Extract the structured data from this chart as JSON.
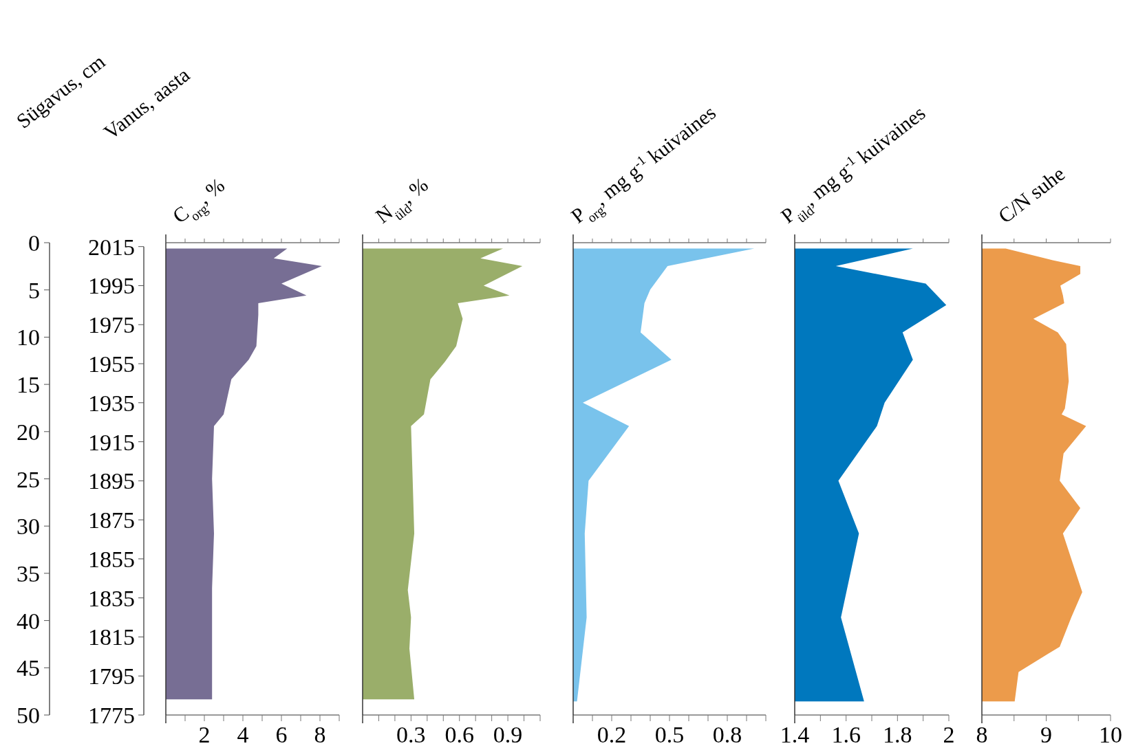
{
  "chart_data": [
    {
      "type": "area",
      "orientation": "horizontal",
      "title": "C$_{org}$, %",
      "ylabel": "Vanus, aasta",
      "y2label": "Sügavus, cm",
      "color": "#776e94",
      "x": [
        2014,
        2009,
        2005,
        1996,
        1990,
        1986,
        1980,
        1964,
        1957,
        1947,
        1929,
        1923,
        1896,
        1868,
        1840,
        1825,
        1783
      ],
      "values": [
        6.3,
        5.6,
        8.1,
        6.0,
        7.3,
        4.8,
        4.8,
        4.7,
        4.3,
        3.4,
        3.0,
        2.5,
        2.4,
        2.5,
        2.4,
        2.4,
        2.4
      ],
      "xlim": [
        0,
        9
      ],
      "xticks": [
        {
          "value": 0,
          "label": null
        },
        {
          "value": 1,
          "label": null
        },
        2,
        {
          "value": 3,
          "label": null
        },
        4,
        {
          "value": 5,
          "label": null
        },
        6,
        {
          "value": 7,
          "label": null
        },
        8,
        {
          "value": 9,
          "label": null
        }
      ],
      "ylim": [
        1775,
        2017
      ],
      "yticks": [
        1775,
        1795,
        1815,
        1835,
        1855,
        1875,
        1895,
        1915,
        1935,
        1955,
        1975,
        1995,
        2015
      ],
      "y2lim": [
        50,
        0
      ],
      "y2ticks": [
        0,
        5,
        10,
        15,
        20,
        25,
        30,
        35,
        40,
        45,
        50
      ]
    },
    {
      "type": "area",
      "orientation": "horizontal",
      "title": "N$_{üld}$, %",
      "color": "#9aae6a",
      "tick_labels": "x",
      "x": [
        2014,
        2009,
        2005,
        1995,
        1990,
        1986,
        1978,
        1964,
        1956,
        1947,
        1929,
        1923,
        1896,
        1868,
        1839,
        1825,
        1809,
        1783
      ],
      "values": [
        0.87,
        0.73,
        0.99,
        0.75,
        0.91,
        0.59,
        0.62,
        0.58,
        0.51,
        0.42,
        0.38,
        0.3,
        0.31,
        0.32,
        0.28,
        0.3,
        0.29,
        0.32
      ],
      "xlim": [
        0,
        1.1
      ],
      "xticks": [
        {
          "value": 0,
          "label": null
        },
        {
          "value": 0.1,
          "label": null
        },
        {
          "value": 0.2,
          "label": null
        },
        0.3,
        {
          "value": 0.4,
          "label": null
        },
        {
          "value": 0.5,
          "label": null
        },
        0.6,
        {
          "value": 0.7,
          "label": null
        },
        {
          "value": 0.8,
          "label": null
        },
        0.9,
        {
          "value": 1,
          "label": null
        },
        {
          "value": 1.1,
          "label": null
        }
      ],
      "ylim": [
        1775,
        2017
      ]
    },
    {
      "type": "area",
      "orientation": "horizontal",
      "title": "P$_{org}$, mg g$^{-1}$ kuivaines",
      "color": "#79c3ec",
      "tick_labels": "x",
      "x": [
        2014,
        2005,
        1993,
        1986,
        1971,
        1957,
        1935,
        1923,
        1895,
        1868,
        1825,
        1782
      ],
      "values": [
        0.94,
        0.49,
        0.4,
        0.37,
        0.35,
        0.51,
        0.05,
        0.29,
        0.08,
        0.06,
        0.07,
        0.02
      ],
      "xlim": [
        0,
        1
      ],
      "xticks": [
        {
          "value": 0,
          "label": null
        },
        {
          "value": 0.1,
          "label": null
        },
        0.2,
        {
          "value": 0.3,
          "label": null
        },
        {
          "value": 0.4,
          "label": null
        },
        0.5,
        {
          "value": 0.6,
          "label": null
        },
        {
          "value": 0.7,
          "label": null
        },
        0.8,
        {
          "value": 0.9,
          "label": null
        },
        {
          "value": 1,
          "label": null
        }
      ],
      "ylim": [
        1775,
        2017
      ]
    },
    {
      "type": "area",
      "orientation": "horizontal",
      "title": "P$_{üld}$, mg g$^{-1}$ kuivaines",
      "color": "#0078be",
      "tick_labels": "x",
      "x": [
        2014,
        2005,
        1996,
        1985,
        1971,
        1957,
        1935,
        1923,
        1895,
        1868,
        1825,
        1782
      ],
      "values": [
        1.86,
        1.56,
        1.91,
        1.99,
        1.82,
        1.86,
        1.75,
        1.72,
        1.57,
        1.65,
        1.58,
        1.67
      ],
      "xlim": [
        1.4,
        2
      ],
      "xticks": [
        1.4,
        {
          "value": 1.5,
          "label": null
        },
        1.6,
        {
          "value": 1.7,
          "label": null
        },
        1.8,
        {
          "value": 1.9,
          "label": null
        },
        2
      ],
      "ylim": [
        1775,
        2017
      ]
    },
    {
      "type": "area",
      "orientation": "horizontal",
      "title": "C/N suhe",
      "color": "#ec9b4b",
      "tick_labels": "x",
      "x": [
        2014,
        2008,
        2005,
        2001,
        1995,
        1990,
        1986,
        1978,
        1971,
        1965,
        1946,
        1932,
        1929,
        1923,
        1909,
        1895,
        1881,
        1868,
        1838,
        1825,
        1810,
        1797,
        1782
      ],
      "values": [
        8.37,
        9.1,
        9.53,
        9.53,
        9.22,
        9.26,
        9.28,
        8.8,
        9.18,
        9.31,
        9.35,
        9.29,
        9.24,
        9.62,
        9.27,
        9.21,
        9.53,
        9.26,
        9.56,
        9.39,
        9.21,
        8.57,
        8.51
      ],
      "xlim": [
        8,
        10
      ],
      "xticks": [
        8,
        {
          "value": 8.5,
          "label": null
        },
        9,
        {
          "value": 9.5,
          "label": null
        },
        10
      ],
      "ylim": [
        1775,
        2017
      ]
    }
  ]
}
